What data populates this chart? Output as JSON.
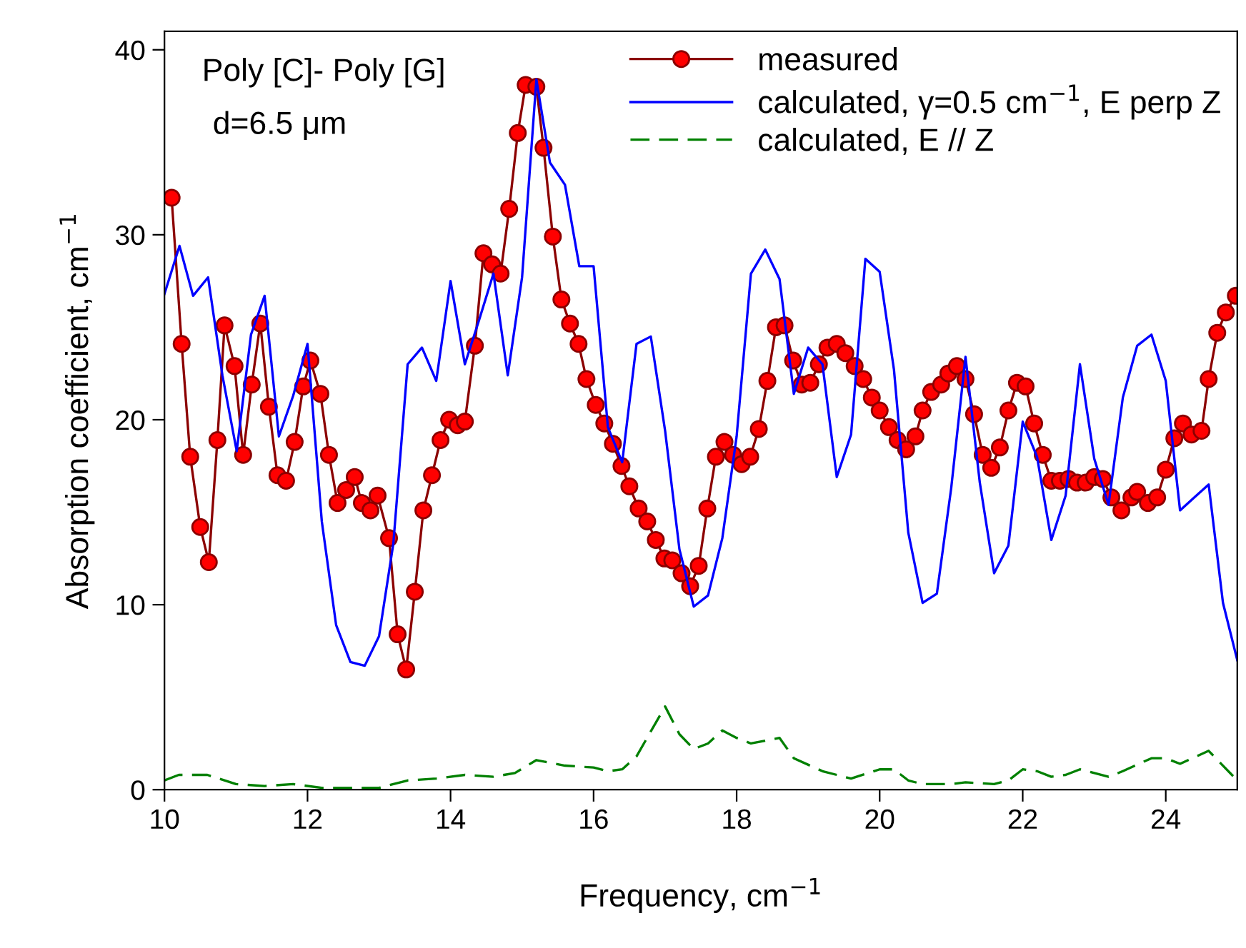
{
  "chart_data": {
    "type": "line",
    "xlabel": "Frequency, cm$^{−1}$",
    "ylabel": "Absorption coefficient, cm$^{−1}$",
    "annotations": [
      "Poly [C]- Poly [G]",
      "d=6.5 μm"
    ],
    "xlim": [
      10,
      25
    ],
    "xticks": [
      10,
      12,
      14,
      16,
      18,
      20,
      22,
      24
    ],
    "ylim": [
      0,
      41
    ],
    "yticks": [
      0,
      10,
      20,
      30,
      40
    ],
    "grid": false,
    "legend": "top right",
    "series": [
      {
        "name": "measured",
        "color": "#8b0000",
        "marker": "circle",
        "line_style": "solid",
        "x": [
          10.1,
          10.24,
          10.36,
          10.5,
          10.62,
          10.74,
          10.84,
          10.98,
          11.1,
          11.22,
          11.34,
          11.46,
          11.58,
          11.7,
          11.82,
          11.94,
          12.04,
          12.18,
          12.3,
          12.42,
          12.54,
          12.66,
          12.76,
          12.88,
          12.98,
          13.14,
          13.26,
          13.38,
          13.5,
          13.62,
          13.74,
          13.86,
          13.98,
          14.1,
          14.2,
          14.34,
          14.46,
          14.58,
          14.7,
          14.82,
          14.94,
          15.05,
          15.2,
          15.3,
          15.43,
          15.55,
          15.67,
          15.79,
          15.9,
          16.03,
          16.15,
          16.27,
          16.39,
          16.5,
          16.63,
          16.75,
          16.87,
          16.99,
          17.1,
          17.23,
          17.35,
          17.47,
          17.59,
          17.71,
          17.83,
          17.95,
          18.07,
          18.19,
          18.31,
          18.43,
          18.55,
          18.67,
          18.79,
          18.91,
          19.03,
          19.15,
          19.27,
          19.4,
          19.52,
          19.65,
          19.77,
          19.89,
          20.0,
          20.13,
          20.25,
          20.37,
          20.5,
          20.6,
          20.72,
          20.86,
          20.96,
          21.08,
          21.2,
          21.32,
          21.44,
          21.56,
          21.68,
          21.8,
          21.92,
          22.04,
          22.16,
          22.28,
          22.4,
          22.52,
          22.64,
          22.76,
          22.88,
          23.0,
          23.12,
          23.24,
          23.38,
          23.52,
          23.6,
          23.75,
          23.88,
          24.0,
          24.12,
          24.24,
          24.36,
          24.5,
          24.6,
          24.72,
          24.84,
          24.98
        ],
        "values": [
          32.0,
          24.1,
          18.0,
          14.2,
          12.3,
          18.9,
          25.1,
          22.9,
          18.1,
          21.9,
          25.2,
          20.7,
          17.0,
          16.7,
          18.8,
          21.8,
          23.2,
          21.4,
          18.1,
          15.5,
          16.2,
          16.9,
          15.5,
          15.1,
          15.9,
          13.6,
          8.4,
          6.5,
          10.7,
          15.1,
          17.0,
          18.9,
          20.0,
          19.7,
          19.9,
          24.0,
          29.0,
          28.4,
          27.9,
          31.4,
          35.5,
          38.1,
          38.0,
          34.7,
          29.9,
          26.5,
          25.2,
          24.1,
          22.2,
          20.8,
          19.8,
          18.7,
          17.5,
          16.4,
          15.2,
          14.5,
          13.5,
          12.5,
          12.4,
          11.7,
          11.0,
          12.1,
          15.2,
          18.0,
          18.8,
          18.1,
          17.6,
          18.0,
          19.5,
          22.1,
          25.0,
          25.1,
          23.2,
          21.9,
          22.0,
          23.0,
          23.9,
          24.1,
          23.6,
          22.9,
          22.2,
          21.2,
          20.5,
          19.6,
          18.9,
          18.4,
          19.1,
          20.5,
          21.5,
          21.9,
          22.5,
          22.9,
          22.2,
          20.3,
          18.1,
          17.4,
          18.5,
          20.5,
          22.0,
          21.8,
          19.8,
          18.1,
          16.7,
          16.7,
          16.8,
          16.6,
          16.6,
          16.9,
          16.8,
          15.8,
          15.1,
          15.8,
          16.1,
          15.5,
          15.8,
          17.3,
          19.0,
          19.8,
          19.2,
          19.4,
          22.2,
          24.7,
          25.8,
          26.7
        ]
      },
      {
        "name": "calculated, γ=0.5 cm$^{−1}$, E perp Z",
        "color": "#0000ff",
        "marker": "none",
        "line_style": "solid",
        "x": [
          10.0,
          10.21,
          10.4,
          10.61,
          10.81,
          11.01,
          11.21,
          11.4,
          11.6,
          11.8,
          12.0,
          12.2,
          12.4,
          12.6,
          12.8,
          13.0,
          13.2,
          13.4,
          13.6,
          13.8,
          14.0,
          14.2,
          14.4,
          14.6,
          14.8,
          15.0,
          15.2,
          15.39,
          15.6,
          15.8,
          16.0,
          16.2,
          16.4,
          16.6,
          16.8,
          17.0,
          17.2,
          17.4,
          17.6,
          17.8,
          18.0,
          18.2,
          18.4,
          18.6,
          18.8,
          19.0,
          19.2,
          19.4,
          19.6,
          19.8,
          20.0,
          20.2,
          20.4,
          20.6,
          20.8,
          21.0,
          21.2,
          21.4,
          21.6,
          21.8,
          22.0,
          22.2,
          22.4,
          22.6,
          22.8,
          23.0,
          23.2,
          23.4,
          23.6,
          23.8,
          24.0,
          24.2,
          24.4,
          24.6,
          24.8,
          25.0
        ],
        "values": [
          26.8,
          29.4,
          26.7,
          27.7,
          22.4,
          18.3,
          24.6,
          26.7,
          19.1,
          21.3,
          24.1,
          14.5,
          8.9,
          6.9,
          6.7,
          8.3,
          13.3,
          23.0,
          23.9,
          22.1,
          27.5,
          23.0,
          25.4,
          27.9,
          22.4,
          27.7,
          38.4,
          33.9,
          32.7,
          28.3,
          28.3,
          19.6,
          17.7,
          24.1,
          24.5,
          19.4,
          13.0,
          9.9,
          10.5,
          13.6,
          19.1,
          27.9,
          29.2,
          27.6,
          21.4,
          23.9,
          23.0,
          16.9,
          19.2,
          28.7,
          28.0,
          22.7,
          13.9,
          10.1,
          10.6,
          16.3,
          23.4,
          16.6,
          11.7,
          13.2,
          19.9,
          18.0,
          13.5,
          15.9,
          23.0,
          17.9,
          15.4,
          21.2,
          24.0,
          24.6,
          22.1,
          15.1,
          15.8,
          16.5,
          10.1,
          7.0
        ]
      },
      {
        "name": "calculated, E // Z",
        "color": "#008000",
        "marker": "none",
        "line_style": "dashed",
        "x": [
          10.0,
          10.2,
          10.6,
          11.0,
          11.4,
          11.8,
          12.2,
          12.6,
          13.0,
          13.4,
          13.8,
          14.2,
          14.6,
          14.9,
          15.2,
          15.6,
          16.0,
          16.2,
          16.4,
          16.6,
          17.0,
          17.2,
          17.4,
          17.6,
          17.8,
          18.0,
          18.2,
          18.6,
          18.8,
          19.2,
          19.6,
          20.0,
          20.2,
          20.4,
          20.6,
          21.0,
          21.2,
          21.6,
          21.8,
          22.0,
          22.2,
          22.4,
          22.6,
          22.8,
          23.2,
          23.4,
          23.8,
          24.0,
          24.2,
          24.6,
          25.0
        ],
        "values": [
          0.5,
          0.8,
          0.8,
          0.3,
          0.2,
          0.3,
          0.1,
          0.1,
          0.1,
          0.5,
          0.6,
          0.8,
          0.7,
          0.9,
          1.6,
          1.3,
          1.2,
          1.0,
          1.1,
          1.8,
          4.5,
          3.0,
          2.2,
          2.5,
          3.2,
          2.8,
          2.5,
          2.8,
          1.7,
          1.0,
          0.6,
          1.1,
          1.1,
          0.5,
          0.3,
          0.3,
          0.4,
          0.3,
          0.5,
          1.1,
          1.0,
          0.7,
          0.8,
          1.1,
          0.7,
          1.0,
          1.7,
          1.7,
          1.4,
          2.1,
          0.5
        ]
      }
    ]
  }
}
